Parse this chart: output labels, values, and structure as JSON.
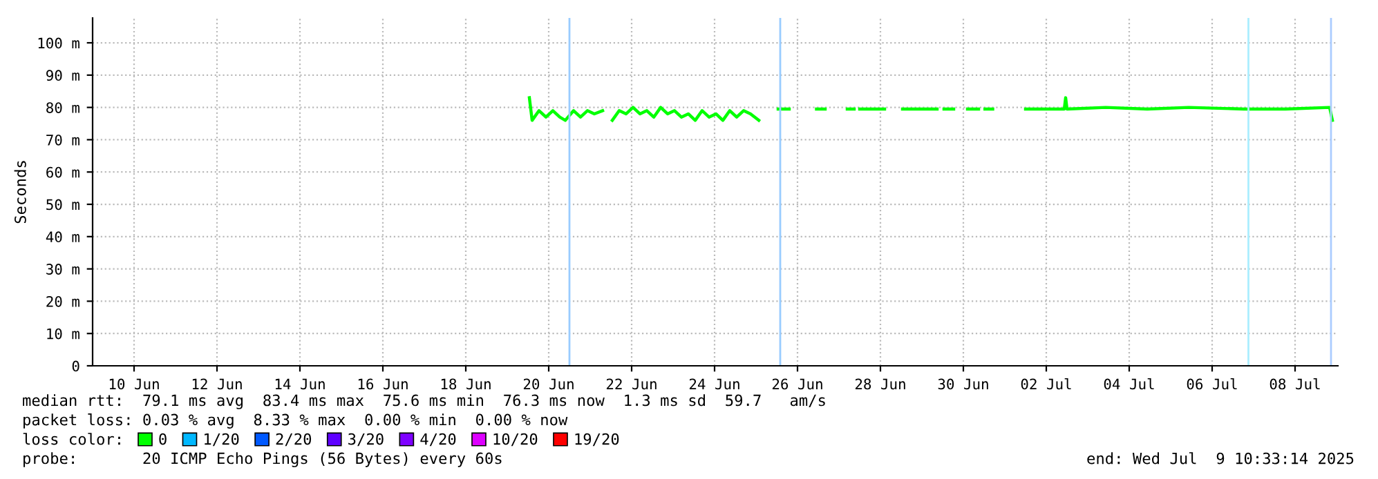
{
  "chart_data": {
    "type": "line",
    "ylabel": "Seconds",
    "legend_title": "loss color:",
    "legend": "bottom",
    "grid": true,
    "line_style": "solid",
    "xlim": [
      "2025-06-09T12:00",
      "2025-07-09T12:48"
    ],
    "xticks": [
      {
        "value": "2025-06-10T12:00",
        "label": "10 Jun"
      },
      {
        "value": "2025-06-12T12:00",
        "label": "12 Jun"
      },
      {
        "value": "2025-06-14T12:00",
        "label": "14 Jun"
      },
      {
        "value": "2025-06-16T12:00",
        "label": "16 Jun"
      },
      {
        "value": "2025-06-18T12:00",
        "label": "18 Jun"
      },
      {
        "value": "2025-06-20T12:00",
        "label": "20 Jun"
      },
      {
        "value": "2025-06-22T12:00",
        "label": "22 Jun"
      },
      {
        "value": "2025-06-24T12:00",
        "label": "24 Jun"
      },
      {
        "value": "2025-06-26T12:00",
        "label": "26 Jun"
      },
      {
        "value": "2025-06-28T12:00",
        "label": "28 Jun"
      },
      {
        "value": "2025-06-30T12:00",
        "label": "30 Jun"
      },
      {
        "value": "2025-07-02T12:00",
        "label": "02 Jul"
      },
      {
        "value": "2025-07-04T12:00",
        "label": "04 Jul"
      },
      {
        "value": "2025-07-06T12:00",
        "label": "06 Jul"
      },
      {
        "value": "2025-07-08T12:00",
        "label": "08 Jul"
      }
    ],
    "ylim": [
      0,
      107.7
    ],
    "yticks": [
      0,
      {
        "value": 10,
        "label": "10 m"
      },
      {
        "value": 20,
        "label": "20 m"
      },
      {
        "value": 30,
        "label": "30 m"
      },
      {
        "value": 40,
        "label": "40 m"
      },
      {
        "value": 50,
        "label": "50 m"
      },
      {
        "value": 60,
        "label": "60 m"
      },
      {
        "value": 70,
        "label": "70 m"
      },
      {
        "value": 80,
        "label": "80 m"
      },
      {
        "value": 90,
        "label": "90 m"
      },
      {
        "value": 100,
        "label": "100 m"
      }
    ],
    "ref_lines": [
      {
        "axis": "x",
        "value": "2025-06-21T00:00",
        "color": "#99ccff"
      },
      {
        "axis": "x",
        "value": "2025-06-26T02:00",
        "color": "#99ccff"
      },
      {
        "axis": "x",
        "value": "2025-07-07T09:00",
        "color": "#aaeeff"
      },
      {
        "axis": "x",
        "value": "2025-07-09T08:48",
        "color": "#aaccff"
      }
    ],
    "series": [
      {
        "name": "0",
        "color": "#00ff00",
        "x": [
          "2025-06-20T00:48",
          "2025-06-20T02:24",
          "2025-06-20T06:24",
          "2025-06-20T10:24",
          "2025-06-20T14:24",
          "2025-06-20T18:24",
          "2025-06-20T21:36",
          "2025-06-21T02:24",
          "2025-06-21T06:24",
          "2025-06-21T10:24",
          "2025-06-21T14:24",
          "2025-06-21T19:12",
          "2025-06-21T22:24",
          "2025-06-22T00:48",
          "2025-06-22T04:48",
          "2025-06-22T08:48",
          "2025-06-22T12:48",
          "2025-06-22T16:48",
          "2025-06-22T20:48",
          "2025-06-23T00:48",
          "2025-06-23T04:48",
          "2025-06-23T08:48",
          "2025-06-23T12:48",
          "2025-06-23T16:48",
          "2025-06-23T20:48",
          "2025-06-24T00:48",
          "2025-06-24T04:48",
          "2025-06-24T08:48",
          "2025-06-24T12:48",
          "2025-06-24T16:48",
          "2025-06-24T20:48",
          "2025-06-25T00:48",
          "2025-06-25T04:48",
          "2025-06-25T08:48",
          "2025-06-25T13:36",
          "2025-06-25T18:24",
          "2025-06-26T00:48",
          "2025-06-26T07:12",
          "2025-06-26T11:12",
          "2025-06-26T23:00",
          "2025-06-27T04:00",
          "2025-06-27T10:24",
          "2025-06-27T16:48",
          "2025-06-27T20:48",
          "2025-06-27T22:24",
          "2025-06-28T00:00",
          "2025-06-28T14:24",
          "2025-06-28T19:12",
          "2025-06-29T00:48",
          "2025-06-29T20:48",
          "2025-06-29T22:24",
          "2025-06-30T00:48",
          "2025-06-30T06:24",
          "2025-06-30T10:24",
          "2025-06-30T14:24",
          "2025-06-30T20:48",
          "2025-06-30T23:12",
          "2025-07-01T00:30",
          "2025-07-01T05:00",
          "2025-07-01T10:24",
          "2025-07-02T00:00",
          "2025-07-02T22:24",
          "2025-07-02T23:12",
          "2025-07-03T00:00",
          "2025-07-03T22:24",
          "2025-07-04T22:24",
          "2025-07-05T22:24",
          "2025-07-07T06:24",
          "2025-07-08T06:24",
          "2025-07-09T08:00",
          "2025-07-09T09:36"
        ],
        "values": [
          83,
          76,
          79,
          77,
          79,
          77,
          76,
          79,
          77,
          79,
          78,
          79,
          null,
          76,
          79,
          78,
          80,
          78,
          79,
          77,
          80,
          78,
          79,
          77,
          78,
          76,
          79,
          77,
          78,
          76,
          79,
          77,
          79,
          78,
          76,
          null,
          79.5,
          79.5,
          null,
          79.5,
          79.5,
          null,
          79.5,
          79.5,
          null,
          79.5,
          79.5,
          null,
          79.5,
          79.5,
          null,
          79.5,
          79.5,
          null,
          79.5,
          79.5,
          null,
          79.5,
          79.5,
          null,
          79.5,
          79.5,
          83,
          79.5,
          80,
          79.5,
          80,
          79.5,
          79.5,
          80,
          76
        ]
      },
      {
        "name": "1/20",
        "color": "#00b8ff"
      },
      {
        "name": "2/20",
        "color": "#0059ff"
      },
      {
        "name": "3/20",
        "color": "#5e00ff"
      },
      {
        "name": "4/20",
        "color": "#7e00ff"
      },
      {
        "name": "10/20",
        "color": "#dd00ff"
      },
      {
        "name": "19/20",
        "color": "#ff0000"
      }
    ],
    "annotations": [
      "median rtt:  79.1 ms avg  83.4 ms max  75.6 ms min  76.3 ms now  1.3 ms sd  59.7   am/s",
      "packet loss: 0.03 % avg  8.33 % max  0.00 % min  0.00 % now",
      "probe:       20 ICMP Echo Pings (56 Bytes) every 60s",
      "end: Wed Jul  9 10:33:14 2025"
    ]
  }
}
